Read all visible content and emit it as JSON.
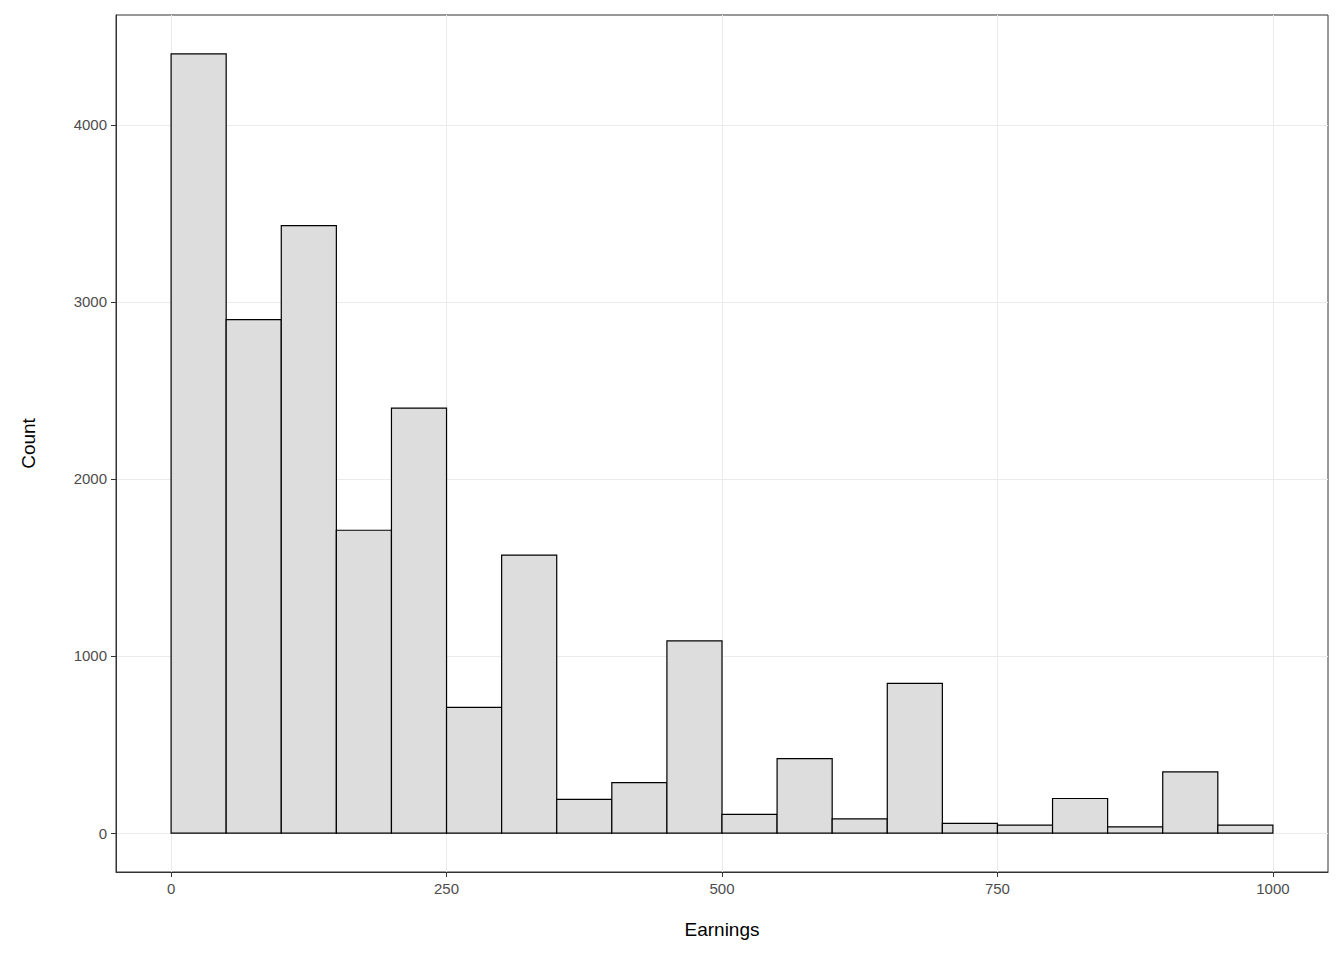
{
  "chart_data": {
    "type": "histogram",
    "xlabel": "Earnings",
    "ylabel": "Count",
    "bins": [
      0,
      50,
      100,
      150,
      200,
      250,
      300,
      350,
      400,
      450,
      500,
      550,
      600,
      650,
      700,
      750,
      800,
      850,
      900,
      950,
      1000
    ],
    "counts": [
      4400,
      2900,
      3430,
      1710,
      2400,
      710,
      1570,
      190,
      285,
      1085,
      105,
      420,
      80,
      845,
      55,
      45,
      195,
      35,
      345,
      45
    ],
    "color": "#dddddd",
    "xlim": [
      -50,
      1050
    ],
    "xticks": [
      0,
      250,
      500,
      750,
      1000
    ],
    "ylim": [
      -220,
      4620
    ],
    "yticks": [
      0,
      1000,
      2000,
      3000,
      4000
    ],
    "grid": true
  }
}
